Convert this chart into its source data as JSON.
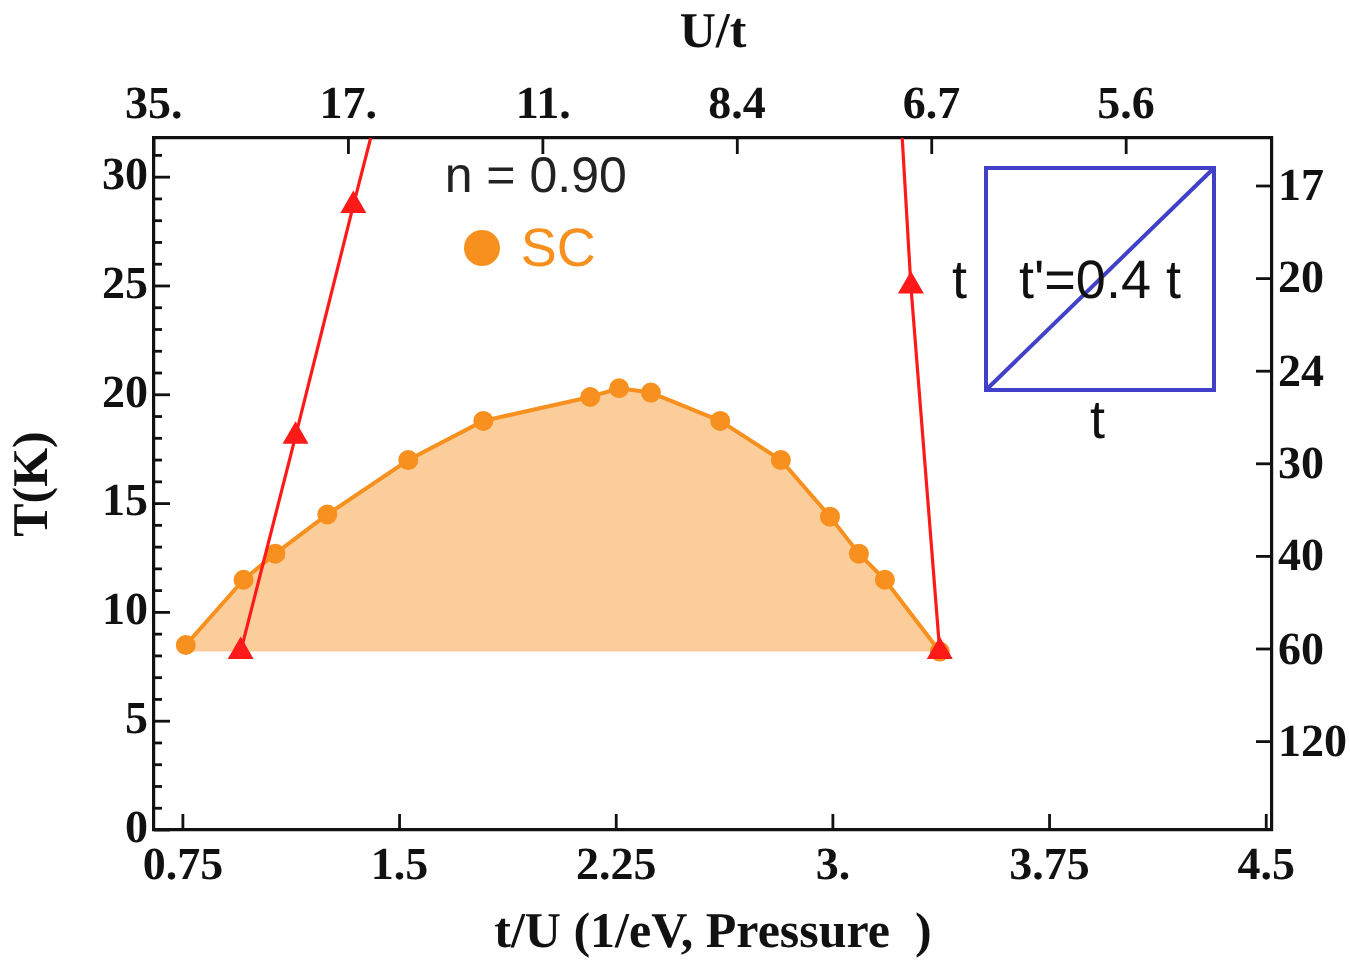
{
  "chart_data": {
    "type": "line",
    "xlabel": "t/U (1/eV, Pressure  )",
    "ylabel": "T(K)",
    "x2label": "U/t",
    "legend_title": "n = 0.90",
    "legend": "top",
    "grid": false,
    "annotations": [
      "t",
      "t'=0.4 t",
      "t",
      "35.",
      "17.",
      "11.",
      "8.4",
      "6.7",
      "5.6",
      "17",
      "20",
      "24",
      "30",
      "40",
      "60",
      "120"
    ],
    "xlim": [
      0.65,
      4.52
    ],
    "xticks": [
      0.75,
      1.5,
      2.25,
      {
        "value": 3,
        "label": "3."
      },
      3.75,
      4.5
    ],
    "ylim": [
      0,
      31.8
    ],
    "yticks": [
      0,
      {
        "value": 1,
        "label": null
      },
      {
        "value": 2,
        "label": null
      },
      {
        "value": 3,
        "label": null
      },
      {
        "value": 4,
        "label": null
      },
      5,
      {
        "value": 6,
        "label": null
      },
      {
        "value": 7,
        "label": null
      },
      {
        "value": 8,
        "label": null
      },
      {
        "value": 9,
        "label": null
      },
      10,
      {
        "value": 11,
        "label": null
      },
      {
        "value": 12,
        "label": null
      },
      {
        "value": 13,
        "label": null
      },
      {
        "value": 14,
        "label": null
      },
      15,
      {
        "value": 16,
        "label": null
      },
      {
        "value": 17,
        "label": null
      },
      {
        "value": 18,
        "label": null
      },
      {
        "value": 19,
        "label": null
      },
      20,
      {
        "value": 21,
        "label": null
      },
      {
        "value": 22,
        "label": null
      },
      {
        "value": 23,
        "label": null
      },
      {
        "value": 24,
        "label": null
      },
      25,
      {
        "value": 26,
        "label": null
      },
      {
        "value": 27,
        "label": null
      },
      {
        "value": 28,
        "label": null
      },
      {
        "value": 29,
        "label": null
      },
      30,
      {
        "value": 31,
        "label": null
      }
    ],
    "series": [
      {
        "name": "SC",
        "color": "#f7901e",
        "marker": "circle",
        "x": [
          0.76,
          0.96,
          1.07,
          1.25,
          1.53,
          1.79,
          2.16,
          2.26,
          2.37,
          2.61,
          2.82,
          2.99,
          3.09,
          3.18,
          3.37
        ],
        "values": [
          8.5,
          11.5,
          12.7,
          14.5,
          17.0,
          18.8,
          19.9,
          20.3,
          20.1,
          18.8,
          17.0,
          14.4,
          12.7,
          11.5,
          8.2
        ],
        "lower": [
          8.2,
          8.2,
          8.2,
          8.2,
          8.2,
          8.2,
          8.2,
          8.2,
          8.2,
          8.2,
          8.2,
          8.2,
          8.2,
          8.2,
          8.2
        ],
        "upper": [
          8.5,
          11.5,
          12.7,
          14.5,
          17.0,
          18.8,
          19.9,
          20.3,
          20.1,
          18.8,
          17.0,
          14.4,
          12.7,
          11.5,
          8.2
        ]
      },
      {
        "color": "#ff1a1a",
        "marker": "triangle",
        "x": [
          0.95,
          1.14,
          1.34
        ],
        "values": [
          8.2,
          18.1,
          28.7
        ]
      },
      {
        "color": "#ff1a1a",
        "marker": "none",
        "x": [
          1.34,
          1.4
        ],
        "values": [
          28.7,
          31.8
        ]
      },
      {
        "color": "#ff1a1a",
        "marker": "triangle",
        "x": [
          3.37,
          3.27
        ],
        "values": [
          8.2,
          25.0
        ]
      },
      {
        "color": "#ff1a1a",
        "marker": "none",
        "x": [
          3.27,
          3.24
        ],
        "values": [
          25.0,
          31.8
        ]
      }
    ]
  }
}
